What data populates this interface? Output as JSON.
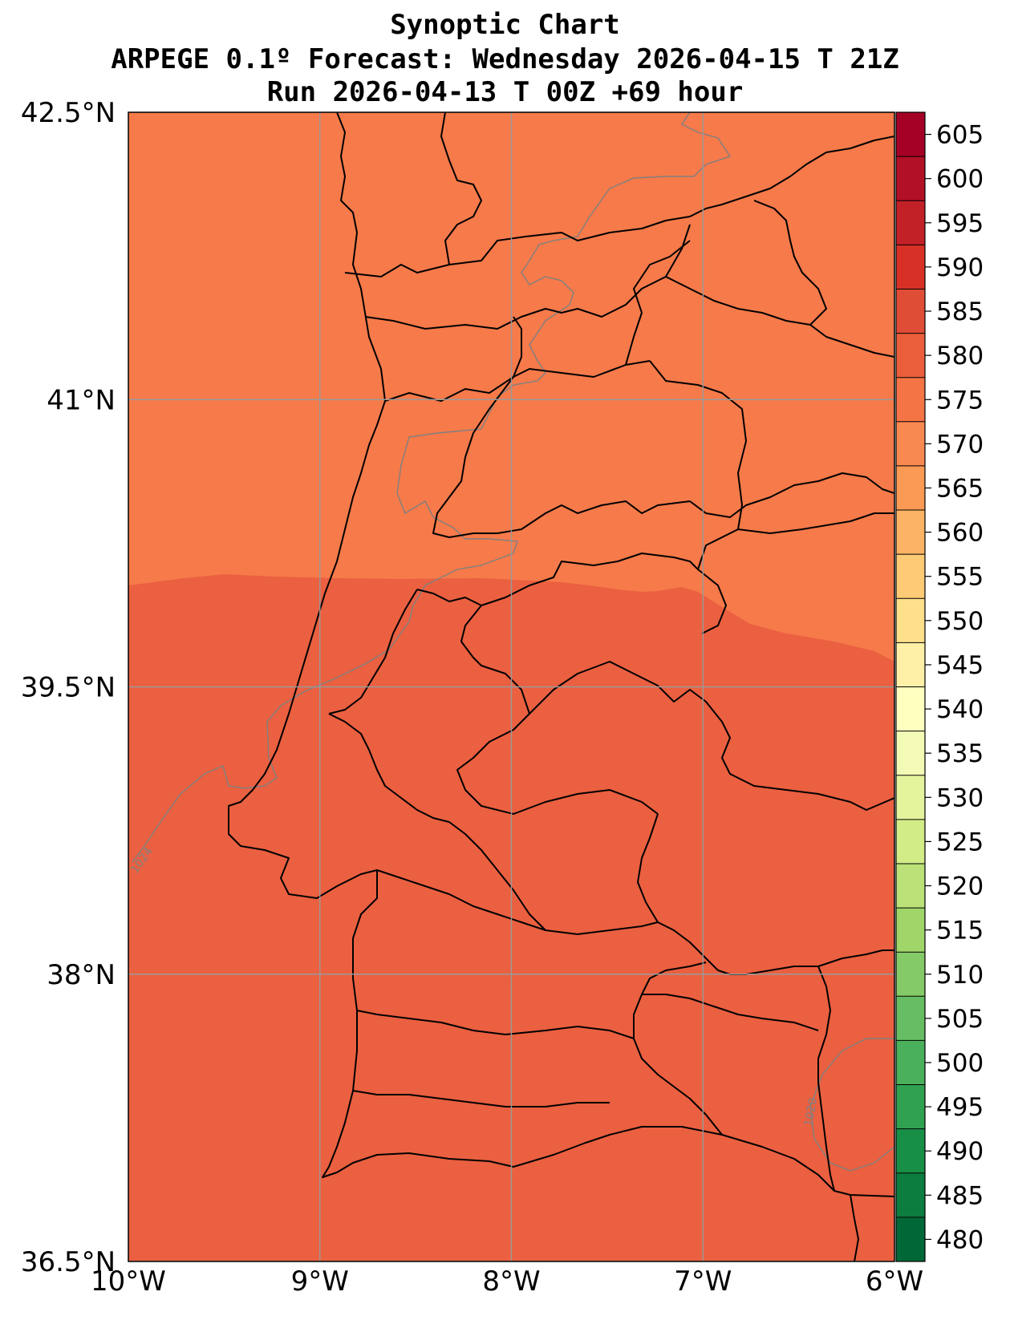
{
  "header": {
    "title": "Synoptic Chart",
    "subtitle": "ARPEGE 0.1º Forecast: Wednesday 2026-04-15 T 21Z",
    "run": "Run 2026-04-13 T 00Z +69 hour"
  },
  "map": {
    "region": "Portugal / western Iberia",
    "lon_range": [
      -10,
      -6
    ],
    "lat_range": [
      36.5,
      42.5
    ],
    "lon_ticks": [
      "10°W",
      "9°W",
      "8°W",
      "7°W",
      "6°W"
    ],
    "lat_ticks": [
      "36.5°N",
      "38°N",
      "39.5°N",
      "41°N",
      "42.5°N"
    ],
    "grid": true,
    "field_colors": {
      "north_band": "#f67a4a",
      "south_band": "#ea6040",
      "boundary_lines": "#000000",
      "isobars": "#808080"
    },
    "isobar_labels": [
      "1024",
      "1020"
    ]
  },
  "colorbar": {
    "levels": [
      "480",
      "485",
      "490",
      "495",
      "500",
      "505",
      "510",
      "515",
      "520",
      "525",
      "530",
      "535",
      "540",
      "545",
      "550",
      "555",
      "560",
      "565",
      "570",
      "575",
      "580",
      "585",
      "590",
      "595",
      "600",
      "605"
    ],
    "colors": [
      "#006837",
      "#0c7d3f",
      "#188f47",
      "#30a150",
      "#4bb05c",
      "#66bd63",
      "#84ca66",
      "#a0d669",
      "#bbe178",
      "#d2ec88",
      "#e4f49d",
      "#f3fab6",
      "#ffffbf",
      "#fff0a8",
      "#fee08b",
      "#fdca76",
      "#fdb365",
      "#fb9a55",
      "#f88950",
      "#f57446",
      "#ea5e3b",
      "#e04d36",
      "#d73027",
      "#c32128",
      "#b11026",
      "#a50026"
    ]
  }
}
